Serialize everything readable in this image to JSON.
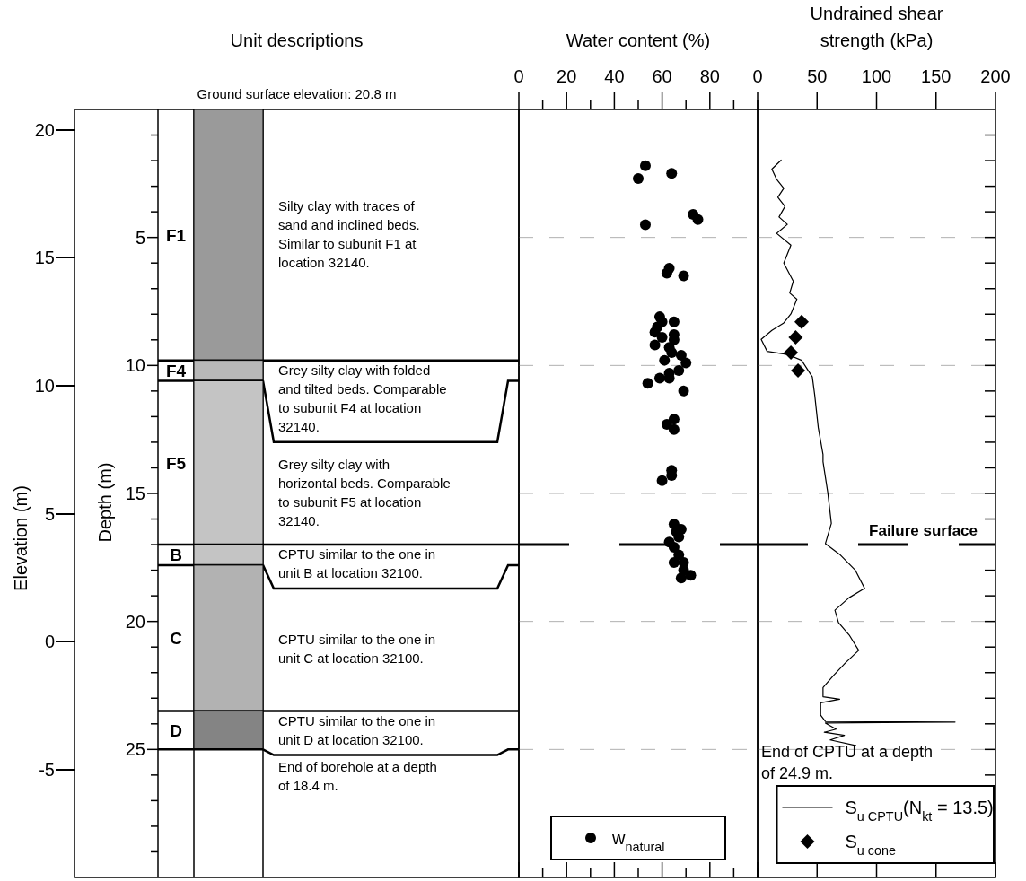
{
  "chart_data": [
    {
      "type": "bar",
      "stacked": true,
      "categories": [
        null
      ],
      "title": "Unit descriptions",
      "subtitle": "Ground surface elevation: 20.8 m",
      "ylabel": "Depth (m)",
      "y2label": "Elevation (m)",
      "ylim": [
        30,
        0
      ],
      "yticks": [
        {
          "value": 1,
          "label": null
        },
        {
          "value": 2,
          "label": null
        },
        {
          "value": 3,
          "label": null
        },
        {
          "value": 4,
          "label": null
        },
        5,
        {
          "value": 6,
          "label": null
        },
        {
          "value": 7,
          "label": null
        },
        {
          "value": 8,
          "label": null
        },
        {
          "value": 9,
          "label": null
        },
        10,
        {
          "value": 11,
          "label": null
        },
        {
          "value": 12,
          "label": null
        },
        {
          "value": 13,
          "label": null
        },
        {
          "value": 14,
          "label": null
        },
        15,
        {
          "value": 16,
          "label": null
        },
        {
          "value": 17,
          "label": null
        },
        {
          "value": 18,
          "label": null
        },
        {
          "value": 19,
          "label": null
        },
        20,
        {
          "value": 21,
          "label": null
        },
        {
          "value": 22,
          "label": null
        },
        {
          "value": 23,
          "label": null
        },
        {
          "value": 24,
          "label": null
        },
        25,
        {
          "value": 26,
          "label": null
        },
        {
          "value": 27,
          "label": null
        },
        {
          "value": 28,
          "label": null
        },
        {
          "value": 29,
          "label": null
        }
      ],
      "y2lim": [
        -9.2,
        20.8
      ],
      "y2ticks": [
        -5,
        0,
        5,
        10,
        15,
        20
      ],
      "series": [
        {
          "name": "F1",
          "color": "#9a9a9a",
          "values": [
            9.8
          ]
        },
        {
          "name": "F4",
          "color": "#b8b8b8",
          "values": [
            0.8
          ]
        },
        {
          "name": "F5",
          "color": "#c4c4c4",
          "values": [
            6.4
          ]
        },
        {
          "name": "B",
          "color": "#c4c4c4",
          "values": [
            0.8
          ]
        },
        {
          "name": "C",
          "color": "#b2b2b2",
          "values": [
            5.7
          ]
        },
        {
          "name": "D",
          "color": "#848484",
          "values": [
            1.5
          ]
        }
      ],
      "annotations": [
        "Silty clay with traces of sand and inclined beds. Similar to subunit F1 at location 32140.",
        "Grey silty clay with folded and tilted beds. Comparable to subunit F4 at location 32140.",
        "Grey silty clay with horizontal beds. Comparable to subunit F5 at location 32140.",
        "CPTU similar to the one in unit B at location 32100.",
        "CPTU similar to the one in unit C at location 32100.",
        "CPTU similar to the one in unit D at location 32100.",
        "End of borehole at a depth of 18.4 m."
      ]
    },
    {
      "type": "scatter",
      "title": "Water content (%)",
      "xlim": [
        0,
        100
      ],
      "xticks": [
        0,
        {
          "value": 10,
          "label": null
        },
        20,
        {
          "value": 30,
          "label": null
        },
        40,
        {
          "value": 50,
          "label": null
        },
        60,
        {
          "value": 70,
          "label": null
        },
        80,
        {
          "value": 90,
          "label": null
        },
        {
          "value": 100,
          "label": null
        }
      ],
      "ylim": [
        30,
        0
      ],
      "tick_labels": "x",
      "marker": "circle",
      "legend": "bottom",
      "series": [
        {
          "name": "w$_{natural}$",
          "color": "#000000",
          "x": [
            53,
            64,
            50,
            73,
            75,
            53,
            63,
            62,
            69,
            59,
            65,
            60,
            58,
            57,
            60,
            65,
            65,
            57,
            63,
            64,
            68,
            61,
            70,
            67,
            63,
            59,
            63,
            54,
            69,
            65,
            62,
            65,
            64,
            64,
            60,
            65,
            68,
            66,
            67,
            63,
            65,
            67,
            65,
            69,
            69,
            72,
            68
          ],
          "values": [
            2.2,
            2.5,
            2.7,
            4.1,
            4.3,
            4.5,
            6.2,
            6.4,
            6.5,
            8.1,
            8.3,
            8.3,
            8.5,
            8.7,
            8.9,
            8.8,
            9.0,
            9.2,
            9.3,
            9.5,
            9.6,
            9.8,
            9.9,
            10.2,
            10.3,
            10.5,
            10.5,
            10.7,
            11.0,
            12.1,
            12.3,
            12.5,
            14.1,
            14.3,
            14.5,
            16.2,
            16.4,
            16.5,
            16.7,
            16.9,
            17.1,
            17.4,
            17.7,
            17.7,
            18.0,
            18.2,
            18.3
          ]
        }
      ],
      "ref_lines": [
        {
          "axis": "y",
          "value": 5,
          "label": null,
          "color": "#b0b0b0",
          "line_style": "dashed"
        },
        {
          "axis": "y",
          "value": 10,
          "label": null,
          "color": "#b0b0b0",
          "line_style": "dashed"
        },
        {
          "axis": "y",
          "value": 15,
          "label": null,
          "color": "#b0b0b0",
          "line_style": "dashed"
        },
        {
          "axis": "y",
          "value": 20,
          "label": null,
          "color": "#b0b0b0",
          "line_style": "dashed"
        },
        {
          "axis": "y",
          "value": 25,
          "label": null,
          "color": "#b0b0b0",
          "line_style": "dashed"
        },
        {
          "axis": "y",
          "value": 17.0,
          "label": null,
          "color": "#000000",
          "line_style": "dashed"
        }
      ]
    },
    {
      "type": "line",
      "title": "Undrained shear strength (kPa)",
      "xlim": [
        0,
        200
      ],
      "xticks": [
        0,
        50,
        100,
        150,
        200
      ],
      "ylim": [
        30,
        0
      ],
      "tick_labels": "x",
      "legend": "bottom right",
      "yticks": [
        {
          "value": 1,
          "label": null
        },
        {
          "value": 2,
          "label": null
        },
        {
          "value": 3,
          "label": null
        },
        {
          "value": 4,
          "label": null
        },
        {
          "value": 5,
          "label": null
        },
        {
          "value": 6,
          "label": null
        },
        {
          "value": 7,
          "label": null
        },
        {
          "value": 8,
          "label": null
        },
        {
          "value": 9,
          "label": null
        },
        {
          "value": 10,
          "label": null
        },
        {
          "value": 11,
          "label": null
        },
        {
          "value": 12,
          "label": null
        },
        {
          "value": 13,
          "label": null
        },
        {
          "value": 14,
          "label": null
        },
        {
          "value": 15,
          "label": null
        },
        {
          "value": 16,
          "label": null
        },
        {
          "value": 17,
          "label": null
        },
        {
          "value": 18,
          "label": null
        },
        {
          "value": 19,
          "label": null
        },
        {
          "value": 20,
          "label": null
        },
        {
          "value": 21,
          "label": null
        },
        {
          "value": 22,
          "label": null
        },
        {
          "value": 23,
          "label": null
        },
        {
          "value": 24,
          "label": null
        },
        {
          "value": 25,
          "label": null
        },
        {
          "value": 26,
          "label": null
        },
        {
          "value": 27,
          "label": null
        },
        {
          "value": 28,
          "label": null
        },
        {
          "value": 29,
          "label": null
        }
      ],
      "series": [
        {
          "name": "S$_{u CPTU}$(N$_{kt}$ = 13.5)",
          "type": "line",
          "color": "#000000",
          "marker": "none",
          "x": [
            20,
            12,
            16,
            22,
            17,
            23,
            18,
            25,
            16,
            28,
            22,
            30,
            27,
            33,
            28,
            22,
            12,
            3,
            8,
            25,
            37,
            46,
            48,
            51,
            55,
            55,
            59,
            62,
            57,
            69,
            82,
            90,
            77,
            65,
            68,
            77,
            85,
            74,
            64,
            55,
            55,
            69,
            53,
            53,
            57,
            166,
            57,
            66,
            56,
            73,
            61,
            83
          ],
          "values": [
            1.97,
            2.33,
            2.73,
            3.08,
            3.43,
            3.79,
            4.2,
            4.49,
            4.84,
            5.3,
            6.0,
            6.71,
            7.17,
            7.41,
            7.99,
            8.34,
            8.63,
            8.98,
            9.45,
            9.57,
            9.8,
            10.45,
            11.15,
            12.43,
            13.48,
            13.76,
            14.97,
            16.17,
            16.96,
            17.38,
            17.99,
            18.71,
            19.07,
            19.56,
            20.04,
            20.53,
            21.13,
            21.61,
            22.1,
            22.58,
            22.94,
            23.04,
            23.18,
            23.66,
            23.91,
            23.93,
            23.97,
            24.21,
            24.33,
            24.45,
            24.63,
            24.85
          ]
        },
        {
          "name": "S$_{u cone}$",
          "type": "scatter",
          "color": "#000000",
          "marker": "diamond",
          "x": [
            37,
            32,
            28,
            34
          ],
          "values": [
            8.3,
            8.9,
            9.5,
            10.2
          ]
        }
      ],
      "annotations": [
        "End of CPTU at a depth of 24.9 m."
      ],
      "ref_lines": [
        {
          "axis": "y",
          "value": 5,
          "label": null,
          "color": "#b0b0b0",
          "line_style": "dashed"
        },
        {
          "axis": "y",
          "value": 10,
          "label": null,
          "color": "#b0b0b0",
          "line_style": "dashed"
        },
        {
          "axis": "y",
          "value": 15,
          "label": null,
          "color": "#b0b0b0",
          "line_style": "dashed"
        },
        {
          "axis": "y",
          "value": 20,
          "label": null,
          "color": "#b0b0b0",
          "line_style": "dashed"
        },
        {
          "axis": "y",
          "value": 25,
          "label": null,
          "color": "#b0b0b0",
          "line_style": "dashed"
        },
        {
          "axis": "y",
          "value": 17.0,
          "label": "Failure surface",
          "color": "#000000",
          "line_style": "dashed"
        }
      ]
    }
  ]
}
